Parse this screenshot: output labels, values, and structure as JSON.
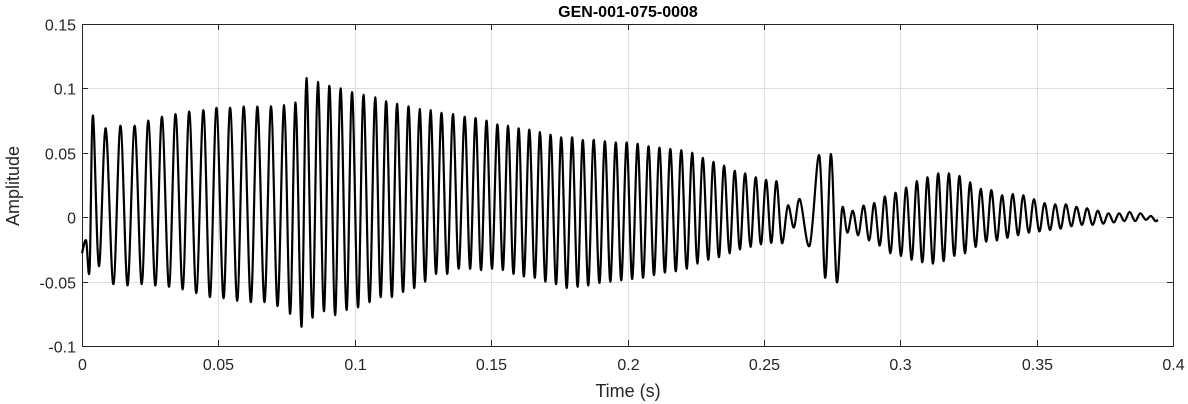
{
  "chart_data": {
    "type": "line",
    "title": "GEN-001-075-0008",
    "xlabel": "Time (s)",
    "ylabel": "Amplitude",
    "xlim": [
      0,
      0.4
    ],
    "ylim": [
      -0.1,
      0.15
    ],
    "grid": true,
    "legend": "none",
    "xticks": [
      0,
      0.05,
      0.1,
      0.15,
      0.2,
      0.25,
      0.3,
      0.35,
      0.4
    ],
    "xtick_labels": [
      "0",
      "0.05",
      "0.1",
      "0.15",
      "0.2",
      "0.25",
      "0.3",
      "0.35",
      "0.4"
    ],
    "yticks": [
      -0.1,
      -0.05,
      0,
      0.05,
      0.1,
      0.15
    ],
    "ytick_labels": [
      "-0.1",
      "-0.05",
      "0",
      "0.05",
      "0.1",
      "0.15"
    ],
    "line_color": "#000000",
    "series": [
      {
        "peaks": [
          [
            0.004,
            0.079
          ],
          [
            0.0087,
            0.069
          ],
          [
            0.0141,
            0.071
          ],
          [
            0.0193,
            0.071
          ],
          [
            0.0243,
            0.075
          ],
          [
            0.0293,
            0.078
          ],
          [
            0.0343,
            0.08
          ],
          [
            0.0393,
            0.082
          ],
          [
            0.0445,
            0.083
          ],
          [
            0.0493,
            0.085
          ],
          [
            0.0543,
            0.085
          ],
          [
            0.0593,
            0.086
          ],
          [
            0.0643,
            0.086
          ],
          [
            0.0693,
            0.086
          ],
          [
            0.0741,
            0.087
          ],
          [
            0.0783,
            0.089
          ],
          [
            0.0823,
            0.108
          ],
          [
            0.0865,
            0.105
          ],
          [
            0.0907,
            0.102
          ],
          [
            0.0948,
            0.1
          ],
          [
            0.099,
            0.097
          ],
          [
            0.1032,
            0.095
          ],
          [
            0.1075,
            0.093
          ],
          [
            0.1115,
            0.09
          ],
          [
            0.1155,
            0.088
          ],
          [
            0.1197,
            0.086
          ],
          [
            0.1238,
            0.084
          ],
          [
            0.1278,
            0.083
          ],
          [
            0.1318,
            0.081
          ],
          [
            0.136,
            0.08
          ],
          [
            0.1403,
            0.078
          ],
          [
            0.1443,
            0.077
          ],
          [
            0.1483,
            0.075
          ],
          [
            0.1523,
            0.072
          ],
          [
            0.1562,
            0.071
          ],
          [
            0.1601,
            0.069
          ],
          [
            0.164,
            0.068
          ],
          [
            0.1679,
            0.066
          ],
          [
            0.1718,
            0.064
          ],
          [
            0.1757,
            0.062
          ],
          [
            0.1797,
            0.062
          ],
          [
            0.1836,
            0.06
          ],
          [
            0.1876,
            0.06
          ],
          [
            0.1917,
            0.059
          ],
          [
            0.1957,
            0.058
          ],
          [
            0.1997,
            0.058
          ],
          [
            0.2037,
            0.057
          ],
          [
            0.2077,
            0.055
          ],
          [
            0.2117,
            0.054
          ],
          [
            0.2157,
            0.053
          ],
          [
            0.2197,
            0.052
          ],
          [
            0.2237,
            0.05
          ],
          [
            0.2276,
            0.046
          ],
          [
            0.2315,
            0.043
          ],
          [
            0.2354,
            0.04
          ],
          [
            0.2393,
            0.036
          ],
          [
            0.2431,
            0.034
          ],
          [
            0.247,
            0.031
          ],
          [
            0.2508,
            0.029
          ],
          [
            0.2546,
            0.028
          ],
          [
            0.2588,
            0.009
          ],
          [
            0.2632,
            0.014
          ],
          [
            0.2703,
            0.048
          ],
          [
            0.2746,
            0.049
          ],
          [
            0.2787,
            0.007
          ],
          [
            0.2826,
            0.005
          ],
          [
            0.2866,
            0.009
          ],
          [
            0.2905,
            0.011
          ],
          [
            0.2944,
            0.016
          ],
          [
            0.2983,
            0.019
          ],
          [
            0.3022,
            0.023
          ],
          [
            0.3061,
            0.028
          ],
          [
            0.31,
            0.031
          ],
          [
            0.3139,
            0.034
          ],
          [
            0.3178,
            0.034
          ],
          [
            0.3217,
            0.032
          ],
          [
            0.3256,
            0.027
          ],
          [
            0.3295,
            0.022
          ],
          [
            0.3334,
            0.021
          ],
          [
            0.3373,
            0.017
          ],
          [
            0.3412,
            0.018
          ],
          [
            0.3451,
            0.017
          ],
          [
            0.349,
            0.014
          ],
          [
            0.3529,
            0.011
          ],
          [
            0.3568,
            0.01
          ],
          [
            0.3607,
            0.01
          ],
          [
            0.3646,
            0.008
          ],
          [
            0.3685,
            0.007
          ],
          [
            0.3724,
            0.005
          ],
          [
            0.3763,
            0.003
          ],
          [
            0.3802,
            0.003
          ],
          [
            0.3841,
            0.004
          ],
          [
            0.388,
            0.003
          ],
          [
            0.3919,
            0.001
          ],
          [
            0.3945,
            -0.002
          ]
        ],
        "troughs": [
          [
            0.0,
            -0.028
          ],
          [
            0.0015,
            -0.018
          ],
          [
            0.0028,
            -0.04
          ],
          [
            0.0062,
            -0.038
          ],
          [
            0.0115,
            -0.052
          ],
          [
            0.0167,
            -0.053
          ],
          [
            0.0219,
            -0.052
          ],
          [
            0.0269,
            -0.053
          ],
          [
            0.0319,
            -0.054
          ],
          [
            0.0369,
            -0.056
          ],
          [
            0.0419,
            -0.059
          ],
          [
            0.0469,
            -0.062
          ],
          [
            0.0519,
            -0.063
          ],
          [
            0.0569,
            -0.065
          ],
          [
            0.0619,
            -0.066
          ],
          [
            0.0669,
            -0.066
          ],
          [
            0.0717,
            -0.069
          ],
          [
            0.0763,
            -0.075
          ],
          [
            0.0805,
            -0.085
          ],
          [
            0.0845,
            -0.078
          ],
          [
            0.0887,
            -0.073
          ],
          [
            0.0928,
            -0.076
          ],
          [
            0.097,
            -0.072
          ],
          [
            0.1012,
            -0.07
          ],
          [
            0.1054,
            -0.066
          ],
          [
            0.1095,
            -0.062
          ],
          [
            0.1136,
            -0.062
          ],
          [
            0.1177,
            -0.058
          ],
          [
            0.1218,
            -0.055
          ],
          [
            0.1258,
            -0.05
          ],
          [
            0.1298,
            -0.044
          ],
          [
            0.1339,
            -0.044
          ],
          [
            0.1381,
            -0.04
          ],
          [
            0.1423,
            -0.04
          ],
          [
            0.1463,
            -0.041
          ],
          [
            0.1503,
            -0.04
          ],
          [
            0.1543,
            -0.041
          ],
          [
            0.1582,
            -0.044
          ],
          [
            0.162,
            -0.046
          ],
          [
            0.166,
            -0.047
          ],
          [
            0.1699,
            -0.05
          ],
          [
            0.1738,
            -0.052
          ],
          [
            0.1777,
            -0.055
          ],
          [
            0.1817,
            -0.054
          ],
          [
            0.1856,
            -0.053
          ],
          [
            0.1897,
            -0.051
          ],
          [
            0.1937,
            -0.05
          ],
          [
            0.1977,
            -0.049
          ],
          [
            0.2017,
            -0.048
          ],
          [
            0.2057,
            -0.047
          ],
          [
            0.2097,
            -0.045
          ],
          [
            0.2137,
            -0.043
          ],
          [
            0.2177,
            -0.042
          ],
          [
            0.2217,
            -0.04
          ],
          [
            0.2256,
            -0.036
          ],
          [
            0.2296,
            -0.033
          ],
          [
            0.2335,
            -0.031
          ],
          [
            0.2374,
            -0.028
          ],
          [
            0.2412,
            -0.025
          ],
          [
            0.2451,
            -0.023
          ],
          [
            0.2489,
            -0.021
          ],
          [
            0.2527,
            -0.02
          ],
          [
            0.2566,
            -0.02
          ],
          [
            0.261,
            -0.008
          ],
          [
            0.2668,
            -0.022
          ],
          [
            0.2725,
            -0.047
          ],
          [
            0.2767,
            -0.05
          ],
          [
            0.2806,
            -0.012
          ],
          [
            0.2846,
            -0.014
          ],
          [
            0.2886,
            -0.018
          ],
          [
            0.2925,
            -0.022
          ],
          [
            0.2964,
            -0.028
          ],
          [
            0.3003,
            -0.03
          ],
          [
            0.3042,
            -0.033
          ],
          [
            0.3081,
            -0.035
          ],
          [
            0.312,
            -0.036
          ],
          [
            0.3159,
            -0.034
          ],
          [
            0.3198,
            -0.03
          ],
          [
            0.3237,
            -0.028
          ],
          [
            0.3276,
            -0.023
          ],
          [
            0.3315,
            -0.019
          ],
          [
            0.3354,
            -0.018
          ],
          [
            0.3393,
            -0.016
          ],
          [
            0.3432,
            -0.014
          ],
          [
            0.3471,
            -0.012
          ],
          [
            0.351,
            -0.011
          ],
          [
            0.3549,
            -0.01
          ],
          [
            0.3588,
            -0.009
          ],
          [
            0.3627,
            -0.007
          ],
          [
            0.3666,
            -0.006
          ],
          [
            0.3705,
            -0.006
          ],
          [
            0.3744,
            -0.005
          ],
          [
            0.3783,
            -0.004
          ],
          [
            0.3822,
            -0.003
          ],
          [
            0.3861,
            -0.003
          ],
          [
            0.39,
            -0.002
          ],
          [
            0.3935,
            -0.003
          ]
        ]
      }
    ]
  }
}
